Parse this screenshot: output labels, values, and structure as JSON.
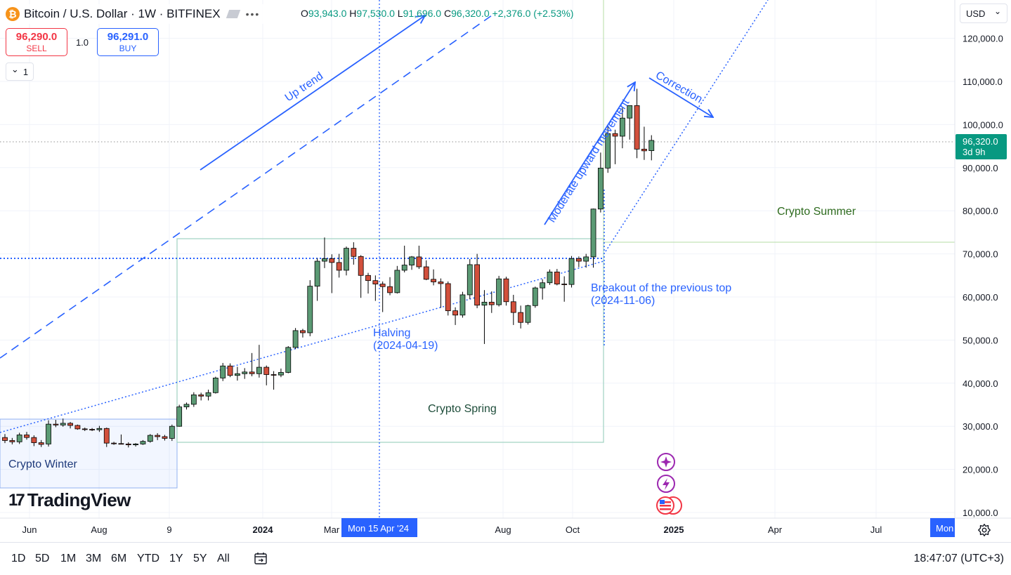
{
  "header": {
    "symbol_icon": "₿",
    "title": "Bitcoin / U.S. Dollar · 1W · BITFINEX",
    "more": "•••",
    "ohlc": {
      "o_label": "O",
      "o": "93,943.0",
      "h_label": "H",
      "h": "97,530.0",
      "l_label": "L",
      "l": "91,696.0",
      "c_label": "C",
      "c": "96,320.0",
      "chg": "+2,376.0 (+2.53%)"
    }
  },
  "trade": {
    "sell_price": "96,290.0",
    "sell_label": "SELL",
    "qty": "1.0",
    "buy_price": "96,291.0",
    "buy_label": "BUY"
  },
  "counter": {
    "chevron": "⌄",
    "value": "1"
  },
  "currency": {
    "label": "USD",
    "chevron": "⌄"
  },
  "logo": {
    "mark": "17",
    "text": "TradingView"
  },
  "price_axis": {
    "ticks": [
      "120,000.0",
      "110,000.0",
      "100,000.0",
      "90,000.0",
      "80,000.0",
      "70,000.0",
      "60,000.0",
      "50,000.0",
      "40,000.0",
      "30,000.0",
      "20,000.0",
      "10,000.0"
    ],
    "last_price": "96,320.0",
    "countdown": "3d 9h",
    "last_price_color": "#089981"
  },
  "time_axis": {
    "labels": [
      {
        "t": "Jun",
        "x": 42,
        "bold": false
      },
      {
        "t": "Aug",
        "x": 141,
        "bold": false
      },
      {
        "t": "9",
        "x": 241,
        "bold": false
      },
      {
        "t": "2024",
        "x": 374,
        "bold": true
      },
      {
        "t": "Mar",
        "x": 472,
        "bold": false
      },
      {
        "t": "Aug",
        "x": 716,
        "bold": false
      },
      {
        "t": "Oct",
        "x": 815,
        "bold": false
      },
      {
        "t": "2025",
        "x": 959,
        "bold": true
      },
      {
        "t": "Apr",
        "x": 1103,
        "bold": false
      },
      {
        "t": "Jul",
        "x": 1247,
        "bold": false
      }
    ],
    "cursor_label": "Mon 15 Apr '24",
    "edge_label": "Mon"
  },
  "annotations": {
    "up_trend": "Up trend",
    "halving": "Halving",
    "halving_date": "(2024-04-19)",
    "breakout": "Breakout of the previous top",
    "breakout_date": "(2024-11-06)",
    "moderate": "Moderate upward movement",
    "correction": "Correction",
    "crypto_spring": "Crypto Spring",
    "crypto_summer": "Crypto Summer",
    "crypto_winter": "Crypto Winter"
  },
  "ranges": [
    "1D",
    "5D",
    "1M",
    "3M",
    "6M",
    "YTD",
    "1Y",
    "5Y",
    "All"
  ],
  "clock": "18:47:07 (UTC+3)",
  "colors": {
    "up": "#089981",
    "down": "#f23645",
    "up_fill": "#5b9a74",
    "down_fill": "#d2503c",
    "annotation": "#2962ff",
    "accent": "#2962ff"
  },
  "chart_data": {
    "type": "candlestick",
    "interval": "1W",
    "ylim": [
      10000,
      120000
    ],
    "candles": [
      {
        "o": 27400,
        "h": 28200,
        "l": 26100,
        "c": 26700
      },
      {
        "o": 26700,
        "h": 27300,
        "l": 25800,
        "c": 26400
      },
      {
        "o": 26400,
        "h": 28500,
        "l": 25900,
        "c": 28000
      },
      {
        "o": 28000,
        "h": 28700,
        "l": 26900,
        "c": 27400
      },
      {
        "o": 27400,
        "h": 27900,
        "l": 25400,
        "c": 26200
      },
      {
        "o": 26200,
        "h": 26800,
        "l": 25200,
        "c": 25800
      },
      {
        "o": 25900,
        "h": 31400,
        "l": 25300,
        "c": 30500
      },
      {
        "o": 30500,
        "h": 31500,
        "l": 29800,
        "c": 30300
      },
      {
        "o": 30300,
        "h": 31800,
        "l": 29900,
        "c": 30700
      },
      {
        "o": 30700,
        "h": 31000,
        "l": 29500,
        "c": 30200
      },
      {
        "o": 30200,
        "h": 30400,
        "l": 29200,
        "c": 29400
      },
      {
        "o": 29400,
        "h": 29700,
        "l": 28900,
        "c": 29300
      },
      {
        "o": 29300,
        "h": 29600,
        "l": 28900,
        "c": 29200
      },
      {
        "o": 29200,
        "h": 30100,
        "l": 28700,
        "c": 29500
      },
      {
        "o": 29500,
        "h": 29700,
        "l": 25200,
        "c": 26100
      },
      {
        "o": 26100,
        "h": 26400,
        "l": 25700,
        "c": 26000
      },
      {
        "o": 26000,
        "h": 28100,
        "l": 25800,
        "c": 25900
      },
      {
        "o": 25900,
        "h": 26300,
        "l": 25100,
        "c": 25700
      },
      {
        "o": 25700,
        "h": 26100,
        "l": 25300,
        "c": 25900
      },
      {
        "o": 25900,
        "h": 26800,
        "l": 25700,
        "c": 26500
      },
      {
        "o": 26500,
        "h": 28200,
        "l": 26200,
        "c": 27900
      },
      {
        "o": 27900,
        "h": 28400,
        "l": 26800,
        "c": 27600
      },
      {
        "o": 27600,
        "h": 28000,
        "l": 26700,
        "c": 27200
      },
      {
        "o": 27200,
        "h": 30400,
        "l": 26600,
        "c": 30000
      },
      {
        "o": 30000,
        "h": 35000,
        "l": 29900,
        "c": 34500
      },
      {
        "o": 34500,
        "h": 35500,
        "l": 33900,
        "c": 35100
      },
      {
        "o": 35100,
        "h": 37900,
        "l": 34500,
        "c": 37300
      },
      {
        "o": 37300,
        "h": 37800,
        "l": 36000,
        "c": 37000
      },
      {
        "o": 37000,
        "h": 38500,
        "l": 36000,
        "c": 37800
      },
      {
        "o": 37800,
        "h": 41500,
        "l": 37600,
        "c": 41200
      },
      {
        "o": 41200,
        "h": 44700,
        "l": 40500,
        "c": 44000
      },
      {
        "o": 44000,
        "h": 44600,
        "l": 41400,
        "c": 41800
      },
      {
        "o": 41800,
        "h": 43800,
        "l": 40600,
        "c": 42200
      },
      {
        "o": 42200,
        "h": 43500,
        "l": 41000,
        "c": 42600
      },
      {
        "o": 42600,
        "h": 47000,
        "l": 41600,
        "c": 42200
      },
      {
        "o": 42200,
        "h": 48900,
        "l": 41300,
        "c": 43700
      },
      {
        "o": 43700,
        "h": 44100,
        "l": 39500,
        "c": 42000
      },
      {
        "o": 42000,
        "h": 42800,
        "l": 38500,
        "c": 41900
      },
      {
        "o": 41900,
        "h": 43400,
        "l": 41400,
        "c": 42500
      },
      {
        "o": 42500,
        "h": 48600,
        "l": 42300,
        "c": 48300
      },
      {
        "o": 48300,
        "h": 52800,
        "l": 47900,
        "c": 52200
      },
      {
        "o": 52200,
        "h": 52600,
        "l": 50600,
        "c": 51700
      },
      {
        "o": 51700,
        "h": 63900,
        "l": 50900,
        "c": 62500
      },
      {
        "o": 62500,
        "h": 69000,
        "l": 59100,
        "c": 68300
      },
      {
        "o": 68300,
        "h": 73800,
        "l": 66700,
        "c": 68900
      },
      {
        "o": 68900,
        "h": 69900,
        "l": 60900,
        "c": 68000
      },
      {
        "o": 68000,
        "h": 70000,
        "l": 64500,
        "c": 66200
      },
      {
        "o": 66200,
        "h": 71700,
        "l": 65000,
        "c": 71300
      },
      {
        "o": 71300,
        "h": 72700,
        "l": 67500,
        "c": 69400
      },
      {
        "o": 69400,
        "h": 69700,
        "l": 59800,
        "c": 65000
      },
      {
        "o": 65000,
        "h": 65600,
        "l": 60800,
        "c": 63800
      },
      {
        "o": 63800,
        "h": 65000,
        "l": 59100,
        "c": 63000
      },
      {
        "o": 63000,
        "h": 63600,
        "l": 56500,
        "c": 62400
      },
      {
        "o": 62400,
        "h": 64600,
        "l": 60400,
        "c": 61000
      },
      {
        "o": 61000,
        "h": 67200,
        "l": 60800,
        "c": 66200
      },
      {
        "o": 66200,
        "h": 71900,
        "l": 65700,
        "c": 67400
      },
      {
        "o": 67400,
        "h": 69500,
        "l": 66300,
        "c": 69300
      },
      {
        "o": 69300,
        "h": 71900,
        "l": 66500,
        "c": 67000
      },
      {
        "o": 67000,
        "h": 68500,
        "l": 63900,
        "c": 64100
      },
      {
        "o": 64100,
        "h": 66400,
        "l": 62700,
        "c": 63500
      },
      {
        "o": 63500,
        "h": 64300,
        "l": 57500,
        "c": 63100
      },
      {
        "o": 63100,
        "h": 63600,
        "l": 55700,
        "c": 56800
      },
      {
        "o": 56800,
        "h": 57600,
        "l": 53500,
        "c": 55800
      },
      {
        "o": 55800,
        "h": 61200,
        "l": 55200,
        "c": 60500
      },
      {
        "o": 60500,
        "h": 68800,
        "l": 59500,
        "c": 67500
      },
      {
        "o": 67500,
        "h": 70000,
        "l": 57400,
        "c": 58100
      },
      {
        "o": 58100,
        "h": 61600,
        "l": 49100,
        "c": 58800
      },
      {
        "o": 58800,
        "h": 61300,
        "l": 56300,
        "c": 58200
      },
      {
        "o": 58200,
        "h": 64900,
        "l": 57800,
        "c": 64200
      },
      {
        "o": 64200,
        "h": 64700,
        "l": 58000,
        "c": 58900
      },
      {
        "o": 58900,
        "h": 60500,
        "l": 53500,
        "c": 56400
      },
      {
        "o": 56400,
        "h": 58000,
        "l": 52700,
        "c": 54100
      },
      {
        "o": 54100,
        "h": 58200,
        "l": 53600,
        "c": 58000
      },
      {
        "o": 58000,
        "h": 62400,
        "l": 57500,
        "c": 62100
      },
      {
        "o": 62100,
        "h": 64100,
        "l": 59400,
        "c": 63300
      },
      {
        "o": 63300,
        "h": 66400,
        "l": 62800,
        "c": 65800
      },
      {
        "o": 65800,
        "h": 66500,
        "l": 62700,
        "c": 63000
      },
      {
        "o": 63000,
        "h": 64800,
        "l": 58900,
        "c": 62900
      },
      {
        "o": 62900,
        "h": 69500,
        "l": 62200,
        "c": 68900
      },
      {
        "o": 68900,
        "h": 69400,
        "l": 66900,
        "c": 68300
      },
      {
        "o": 68300,
        "h": 70000,
        "l": 66800,
        "c": 69300
      },
      {
        "o": 69300,
        "h": 80500,
        "l": 66800,
        "c": 80400
      },
      {
        "o": 80400,
        "h": 93500,
        "l": 79600,
        "c": 89900
      },
      {
        "o": 89900,
        "h": 99600,
        "l": 88800,
        "c": 97900
      },
      {
        "o": 97900,
        "h": 98800,
        "l": 90800,
        "c": 97300
      },
      {
        "o": 97300,
        "h": 103900,
        "l": 94500,
        "c": 101500
      },
      {
        "o": 101500,
        "h": 104100,
        "l": 96500,
        "c": 104400
      },
      {
        "o": 104400,
        "h": 108300,
        "l": 92200,
        "c": 94300
      },
      {
        "o": 94300,
        "h": 99500,
        "l": 91800,
        "c": 93900
      },
      {
        "o": 93943,
        "h": 97530,
        "l": 91696,
        "c": 96320
      }
    ]
  }
}
